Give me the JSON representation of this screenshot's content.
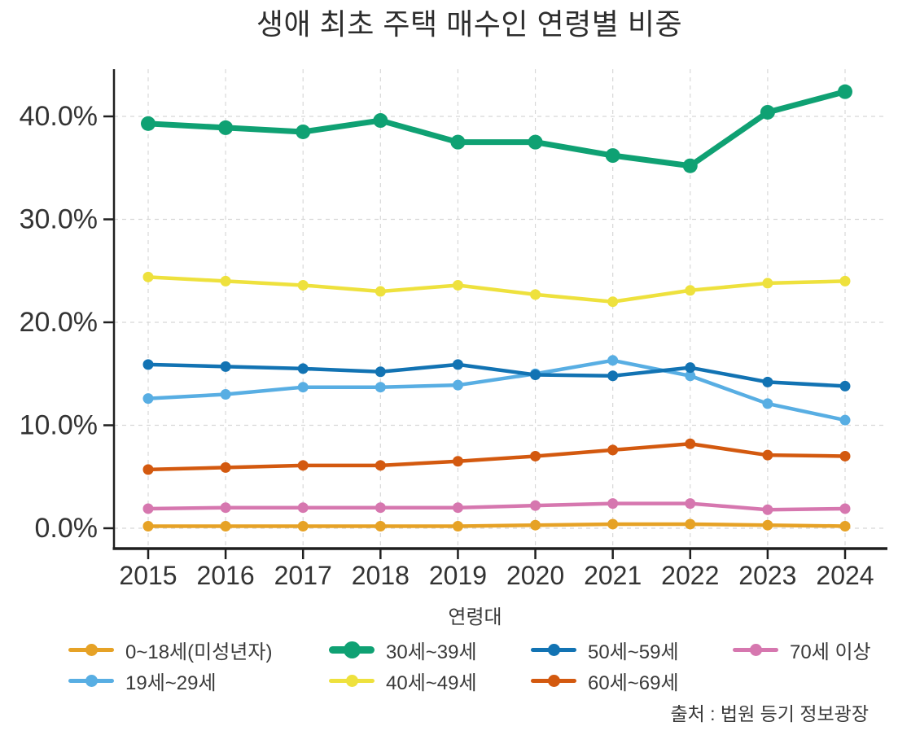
{
  "page": {
    "background": "#ffffff"
  },
  "chart_data": {
    "type": "line",
    "title": "생애 최초 주택 매수인 연령별 비중",
    "xlabel": "",
    "ylabel": "",
    "x": [
      "2015",
      "2016",
      "2017",
      "2018",
      "2019",
      "2020",
      "2021",
      "2022",
      "2023",
      "2024"
    ],
    "yticks": [
      0,
      10,
      20,
      30,
      40
    ],
    "ytick_labels": [
      "0.0%",
      "10.0%",
      "20.0%",
      "30.0%",
      "40.0%"
    ],
    "ylim": [
      -2,
      44.5
    ],
    "grid": true,
    "legend_title": "연령대",
    "legend_position": "bottom",
    "source": "출처 : 법원 등기 정보광장",
    "series": [
      {
        "name": "0~18세(미성년자)",
        "color": "#E6A226",
        "emphasis": false,
        "values": [
          0.2,
          0.2,
          0.2,
          0.2,
          0.2,
          0.3,
          0.4,
          0.4,
          0.3,
          0.2
        ]
      },
      {
        "name": "19세~29세",
        "color": "#58AEE3",
        "emphasis": false,
        "values": [
          12.6,
          13.0,
          13.7,
          13.7,
          13.9,
          15.0,
          16.3,
          14.8,
          12.1,
          10.5
        ]
      },
      {
        "name": "30세~39세",
        "color": "#0FA173",
        "emphasis": true,
        "values": [
          39.3,
          38.9,
          38.5,
          39.6,
          37.5,
          37.5,
          36.2,
          35.2,
          40.4,
          42.4
        ]
      },
      {
        "name": "40세~49세",
        "color": "#EEE13D",
        "emphasis": false,
        "values": [
          24.4,
          24.0,
          23.6,
          23.0,
          23.6,
          22.7,
          22.0,
          23.1,
          23.8,
          24.0
        ]
      },
      {
        "name": "50세~59세",
        "color": "#1273B3",
        "emphasis": false,
        "values": [
          15.9,
          15.7,
          15.5,
          15.2,
          15.9,
          14.9,
          14.8,
          15.6,
          14.2,
          13.8
        ]
      },
      {
        "name": "60세~69세",
        "color": "#D3590F",
        "emphasis": false,
        "values": [
          5.7,
          5.9,
          6.1,
          6.1,
          6.5,
          7.0,
          7.6,
          8.2,
          7.1,
          7.0
        ]
      },
      {
        "name": "70세 이상",
        "color": "#D677AF",
        "emphasis": false,
        "values": [
          1.9,
          2.0,
          2.0,
          2.0,
          2.0,
          2.2,
          2.4,
          2.4,
          1.8,
          1.9
        ]
      }
    ]
  }
}
